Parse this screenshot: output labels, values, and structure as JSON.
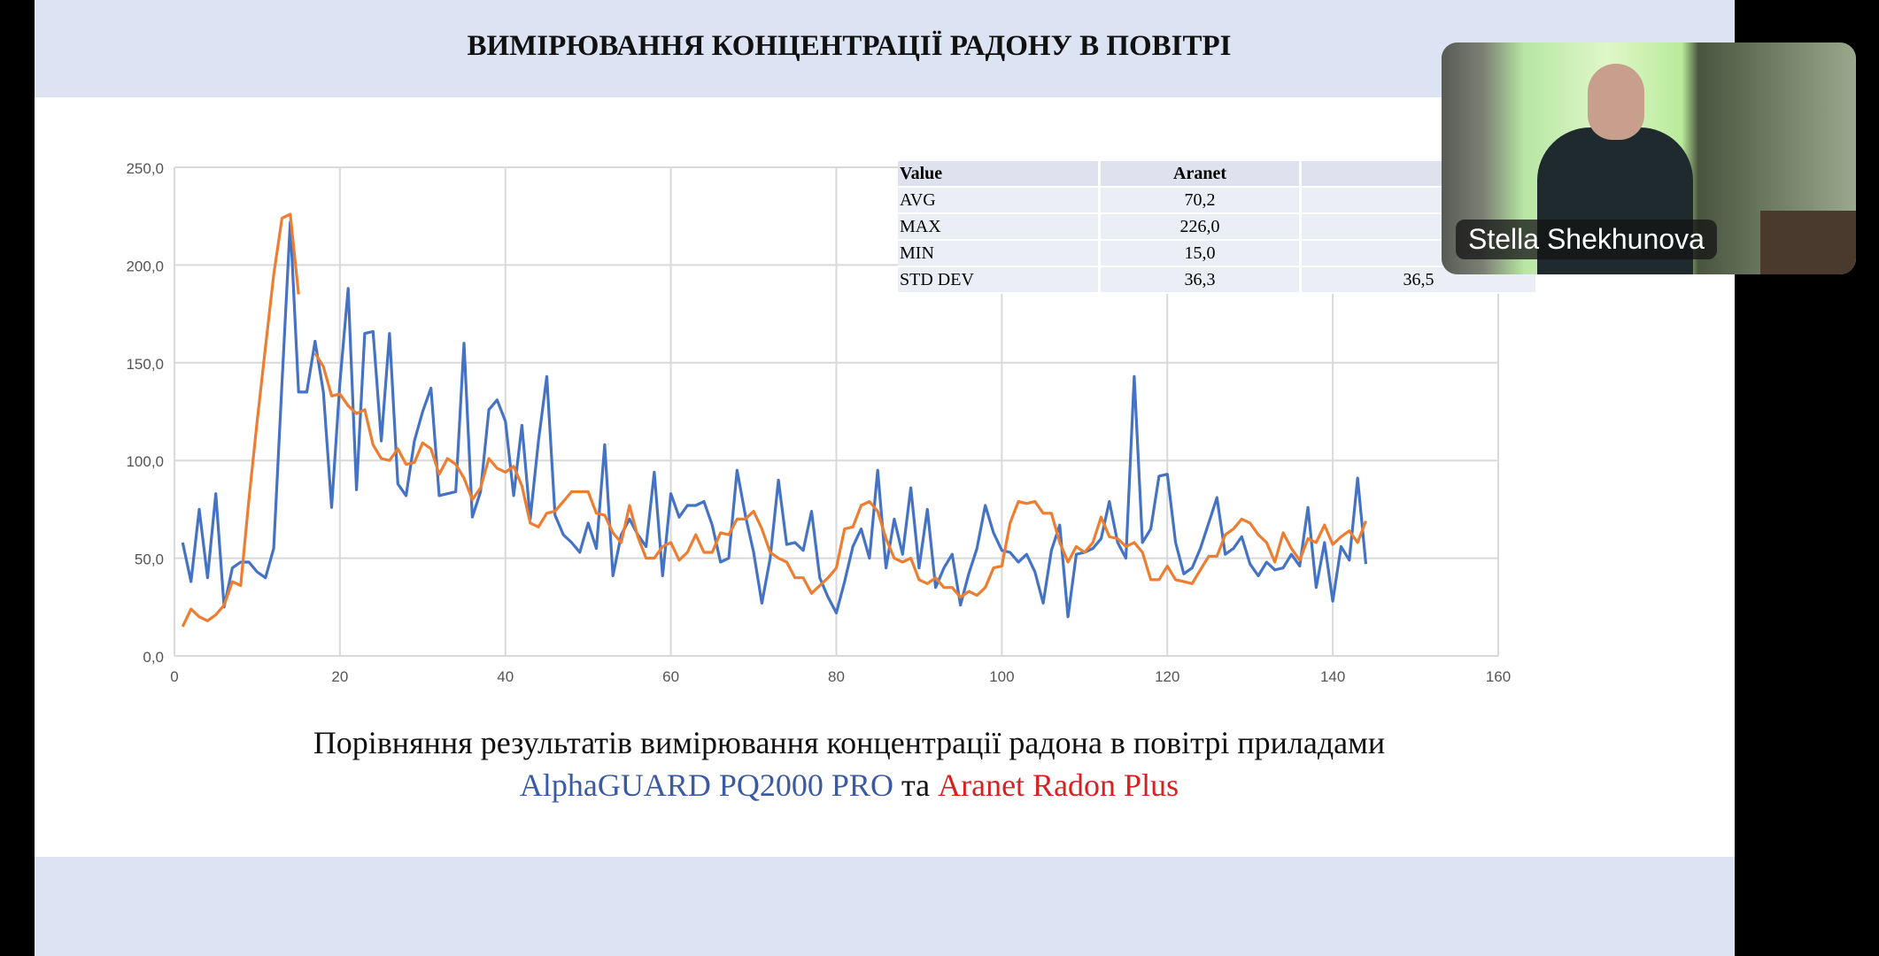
{
  "slide": {
    "title": "ВИМІРЮВАННЯ КОНЦЕНТРАЦІЇ РАДОНУ В ПОВІТРІ",
    "caption_line1": "Порівняння результатів вимірювання концентрації радона в повітрі приладами",
    "caption_device1": "AlphaGUARD PQ2000 PRO",
    "caption_joiner": " та ",
    "caption_device2": "Aranet Radon Plus",
    "colors": {
      "band": "#dce3f3",
      "device1": "#3a5ba3",
      "device2": "#d62121"
    }
  },
  "stats_table": {
    "headers": [
      "Value",
      "Aranet",
      ""
    ],
    "rows": [
      {
        "label": "AVG",
        "aranet": "70,2",
        "other": ""
      },
      {
        "label": "MAX",
        "aranet": "226,0",
        "other": ""
      },
      {
        "label": "MIN",
        "aranet": "15,0",
        "other": ""
      },
      {
        "label": "STD DEV",
        "aranet": "36,3",
        "other": "36,5"
      }
    ]
  },
  "video": {
    "participant_name": "Stella Shekhunova"
  },
  "chart_data": {
    "type": "line",
    "title": "",
    "xlabel": "",
    "ylabel": "",
    "xlim": [
      0,
      160
    ],
    "ylim": [
      0,
      250
    ],
    "xticks": [
      "0",
      "20",
      "40",
      "60",
      "80",
      "100",
      "120",
      "140",
      "160"
    ],
    "yticks": [
      "0,0",
      "50,0",
      "100,0",
      "150,0",
      "200,0",
      "250,0"
    ],
    "grid": true,
    "legend": "none",
    "series": [
      {
        "color": "#4472c4",
        "x": [
          1,
          2,
          3,
          4,
          5,
          6,
          7,
          8,
          9,
          10,
          11,
          12,
          13,
          14,
          15,
          16,
          17,
          18,
          19,
          20,
          21,
          22,
          23,
          24,
          25,
          26,
          27,
          28,
          29,
          30,
          31,
          32,
          33,
          34,
          35,
          36,
          37,
          38,
          39,
          40,
          41,
          42,
          43,
          44,
          45,
          46,
          47,
          48,
          49,
          50,
          51,
          52,
          53,
          54,
          55,
          56,
          57,
          58,
          59,
          60,
          61,
          62,
          63,
          64,
          65,
          66,
          67,
          68,
          69,
          70,
          71,
          72,
          73,
          74,
          75,
          76,
          77,
          78,
          79,
          80,
          81,
          82,
          83,
          84,
          85,
          86,
          87,
          88,
          89,
          90,
          91,
          92,
          93,
          94,
          95,
          96,
          97,
          98,
          99,
          100,
          101,
          102,
          103,
          104,
          105,
          106,
          107,
          108,
          109,
          110,
          111,
          112,
          113,
          114,
          115,
          116,
          117,
          118,
          119,
          120,
          121,
          122,
          123,
          124,
          125,
          126,
          127,
          128,
          129,
          130,
          131,
          132,
          133,
          134,
          135,
          136,
          137,
          138,
          139,
          140,
          141,
          142,
          143,
          144
        ],
        "y": [
          58,
          38,
          75,
          40,
          83,
          25,
          45,
          48,
          48,
          43,
          40,
          55,
          140,
          222,
          135,
          135,
          161,
          135,
          76,
          140,
          188,
          85,
          165,
          166,
          110,
          165,
          88,
          82,
          110,
          125,
          137,
          82,
          83,
          84,
          160,
          71,
          84,
          126,
          131,
          120,
          82,
          118,
          70,
          110,
          143,
          72,
          62,
          58,
          53,
          68,
          55,
          108,
          41,
          62,
          70,
          62,
          56,
          94,
          41,
          83,
          71,
          77,
          77,
          79,
          67,
          48,
          50,
          95,
          72,
          53,
          27,
          50,
          90,
          57,
          58,
          54,
          74,
          40,
          30,
          22,
          38,
          56,
          65,
          50,
          95,
          45,
          70,
          52,
          86,
          45,
          75,
          35,
          45,
          52,
          26,
          42,
          55,
          77,
          63,
          54,
          53,
          48,
          52,
          43,
          27,
          54,
          67,
          20,
          52,
          53,
          55,
          60,
          79,
          58,
          50,
          143,
          58,
          65,
          92,
          93,
          58,
          42,
          45,
          55,
          68,
          81,
          52,
          55,
          61,
          47,
          41,
          48,
          44,
          45,
          52,
          46,
          76,
          35,
          58,
          28,
          56,
          49,
          91,
          47
        ]
      },
      {
        "color": "#ed7d31",
        "x": [
          1,
          2,
          3,
          4,
          5,
          6,
          7,
          8,
          9,
          10,
          11,
          12,
          13,
          14,
          15,
          16,
          17,
          18,
          19,
          20,
          21,
          22,
          23,
          24,
          25,
          26,
          27,
          28,
          29,
          30,
          31,
          32,
          33,
          34,
          35,
          36,
          37,
          38,
          39,
          40,
          41,
          42,
          43,
          44,
          45,
          46,
          47,
          48,
          49,
          50,
          51,
          52,
          53,
          54,
          55,
          56,
          57,
          58,
          59,
          60,
          61,
          62,
          63,
          64,
          65,
          66,
          67,
          68,
          69,
          70,
          71,
          72,
          73,
          74,
          75,
          76,
          77,
          78,
          79,
          80,
          81,
          82,
          83,
          84,
          85,
          86,
          87,
          88,
          89,
          90,
          91,
          92,
          93,
          94,
          95,
          96,
          97,
          98,
          99,
          100,
          101,
          102,
          103,
          104,
          105,
          106,
          107,
          108,
          109,
          110,
          111,
          112,
          113,
          114,
          115,
          116,
          117,
          118,
          119,
          120,
          121,
          122,
          123,
          124,
          125,
          126,
          127,
          128,
          129,
          130,
          131,
          132,
          133,
          134,
          135,
          136,
          137,
          138,
          139,
          140,
          141,
          142,
          143,
          144
        ],
        "y": [
          15,
          24,
          20,
          18,
          21,
          26,
          38,
          36,
          80,
          120,
          158,
          195,
          224,
          226,
          185,
          null,
          155,
          148,
          133,
          134,
          128,
          124,
          126,
          108,
          101,
          100,
          106,
          98,
          99,
          109,
          106,
          93,
          101,
          98,
          91,
          80,
          86,
          101,
          96,
          94,
          97,
          87,
          68,
          66,
          73,
          74,
          79,
          84,
          84,
          84,
          73,
          72,
          63,
          58,
          77,
          61,
          50,
          50,
          56,
          58,
          49,
          53,
          62,
          53,
          53,
          63,
          62,
          70,
          70,
          74,
          65,
          53,
          50,
          48,
          40,
          40,
          32,
          36,
          40,
          45,
          65,
          66,
          77,
          79,
          74,
          60,
          50,
          48,
          50,
          39,
          37,
          40,
          35,
          35,
          30,
          33,
          31,
          35,
          45,
          46,
          68,
          79,
          78,
          79,
          73,
          73,
          58,
          48,
          56,
          53,
          58,
          71,
          61,
          60,
          56,
          58,
          53,
          39,
          39,
          46,
          39,
          38,
          37,
          44,
          51,
          51,
          62,
          65,
          70,
          68,
          62,
          58,
          48,
          63,
          55,
          49,
          60,
          58,
          67,
          57,
          61,
          64,
          58,
          69
        ]
      }
    ]
  }
}
